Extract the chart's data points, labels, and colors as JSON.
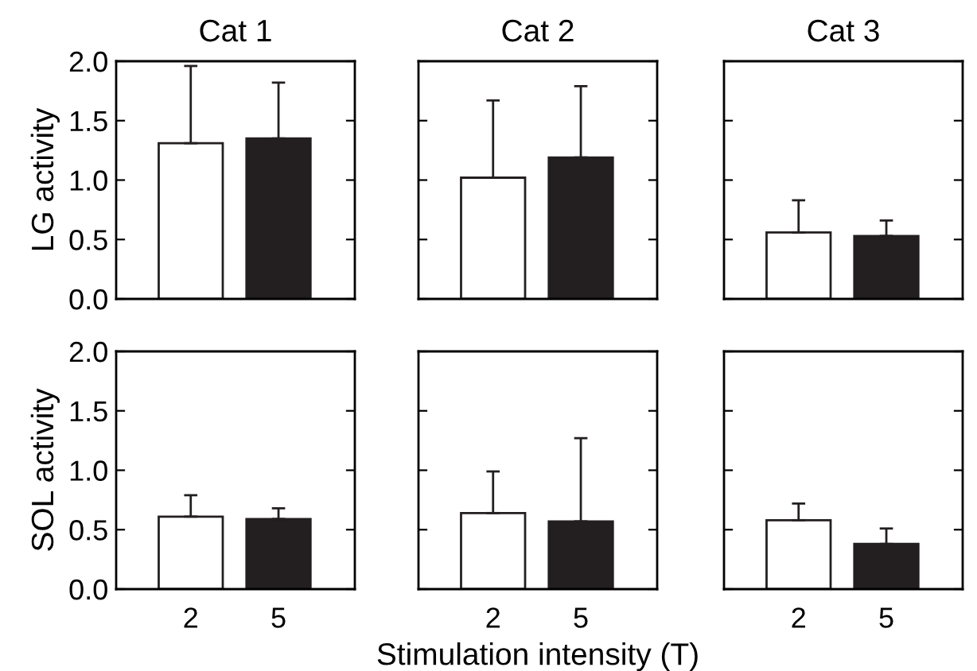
{
  "chart_data": [
    {
      "type": "bar",
      "title": "Cat 1",
      "ylabel": "LG activity",
      "categories": [
        "2",
        "5"
      ],
      "values": [
        1.31,
        1.35
      ],
      "errors": [
        [
          1.31,
          1.96
        ],
        [
          1.35,
          1.82
        ]
      ],
      "colors": [
        "#ffffff",
        "#231f20"
      ],
      "ylim": [
        0,
        2
      ],
      "yticks": [
        {
          "value": 0,
          "label": "0.0"
        },
        {
          "value": 0.5,
          "label": "0.5"
        },
        {
          "value": 1,
          "label": "1.0"
        },
        {
          "value": 1.5,
          "label": "1.5"
        },
        {
          "value": 2,
          "label": "2.0"
        }
      ],
      "tick_labels": "y"
    },
    {
      "type": "bar",
      "title": "Cat 2",
      "categories": [
        "2",
        "5"
      ],
      "values": [
        1.02,
        1.19
      ],
      "errors": [
        [
          1.02,
          1.67
        ],
        [
          1.19,
          1.79
        ]
      ],
      "colors": [
        "#ffffff",
        "#231f20"
      ],
      "ylim": [
        0,
        2
      ],
      "yticks": [
        {
          "value": 0,
          "label": null
        },
        {
          "value": 0.5,
          "label": null
        },
        {
          "value": 1,
          "label": null
        },
        {
          "value": 1.5,
          "label": null
        },
        {
          "value": 2,
          "label": null
        }
      ],
      "tick_labels": false
    },
    {
      "type": "bar",
      "title": "Cat 3",
      "categories": [
        "2",
        "5"
      ],
      "values": [
        0.56,
        0.53
      ],
      "errors": [
        [
          0.56,
          0.83
        ],
        [
          0.53,
          0.66
        ]
      ],
      "colors": [
        "#ffffff",
        "#231f20"
      ],
      "ylim": [
        0,
        2
      ],
      "yticks": [
        {
          "value": 0,
          "label": null
        },
        {
          "value": 0.5,
          "label": null
        },
        {
          "value": 1,
          "label": null
        },
        {
          "value": 1.5,
          "label": null
        },
        {
          "value": 2,
          "label": null
        }
      ],
      "tick_labels": false
    },
    {
      "type": "bar",
      "ylabel": "SOL activity",
      "categories": [
        "2",
        "5"
      ],
      "values": [
        0.61,
        0.59
      ],
      "errors": [
        [
          0.61,
          0.79
        ],
        [
          0.59,
          0.68
        ]
      ],
      "colors": [
        "#ffffff",
        "#231f20"
      ],
      "ylim": [
        0,
        2
      ],
      "yticks": [
        {
          "value": 0,
          "label": "0.0"
        },
        {
          "value": 0.5,
          "label": "0.5"
        },
        {
          "value": 1,
          "label": "1.0"
        },
        {
          "value": 1.5,
          "label": "1.5"
        },
        {
          "value": 2,
          "label": "2.0"
        }
      ]
    },
    {
      "type": "bar",
      "xlabel": "Stimulation intensity (T)",
      "categories": [
        "2",
        "5"
      ],
      "values": [
        0.64,
        0.57
      ],
      "errors": [
        [
          0.64,
          0.99
        ],
        [
          0.57,
          1.27
        ]
      ],
      "colors": [
        "#ffffff",
        "#231f20"
      ],
      "ylim": [
        0,
        2
      ],
      "yticks": [
        {
          "value": 0,
          "label": null
        },
        {
          "value": 0.5,
          "label": null
        },
        {
          "value": 1,
          "label": null
        },
        {
          "value": 1.5,
          "label": null
        },
        {
          "value": 2,
          "label": null
        }
      ],
      "tick_labels": "x"
    },
    {
      "type": "bar",
      "categories": [
        "2",
        "5"
      ],
      "values": [
        0.58,
        0.38
      ],
      "errors": [
        [
          0.58,
          0.72
        ],
        [
          0.38,
          0.51
        ]
      ],
      "colors": [
        "#ffffff",
        "#231f20"
      ],
      "ylim": [
        0,
        2
      ],
      "yticks": [
        {
          "value": 0,
          "label": null
        },
        {
          "value": 0.5,
          "label": null
        },
        {
          "value": 1,
          "label": null
        },
        {
          "value": 1.5,
          "label": null
        },
        {
          "value": 2,
          "label": null
        }
      ],
      "tick_labels": "x"
    }
  ]
}
